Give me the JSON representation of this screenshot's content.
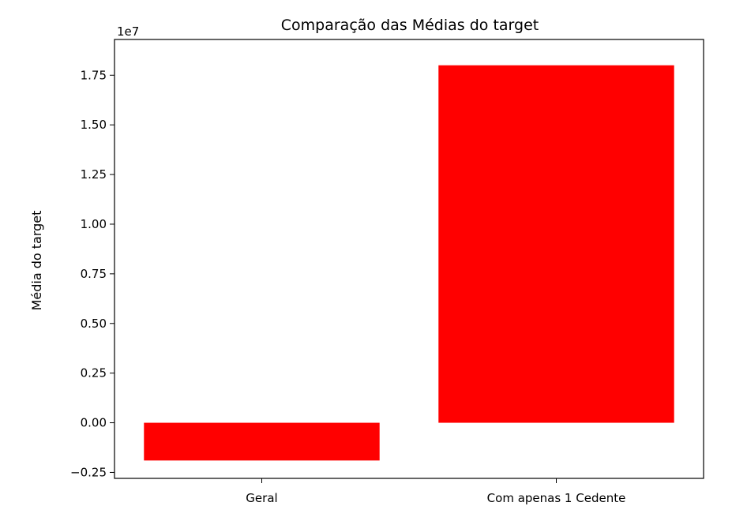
{
  "chart_data": {
    "type": "bar",
    "title": "Comparação das Médias do target",
    "xlabel": "",
    "ylabel": "Média do target",
    "categories": [
      "Geral",
      "Com apenas 1 Cedente"
    ],
    "values": [
      -1900000,
      18000000
    ],
    "ylim": [
      -2800000,
      19300000
    ],
    "yticks": [
      -0.25,
      0.0,
      0.25,
      0.5,
      0.75,
      1.0,
      1.25,
      1.5,
      1.75
    ],
    "yticks_labels": [
      "−0.25",
      "0.00",
      "0.25",
      "0.50",
      "0.75",
      "1.00",
      "1.25",
      "1.50",
      "1.75"
    ],
    "y_offset_label": "1e7",
    "y_scale_factor": 10000000,
    "bar_color": "#ff0000",
    "grid": false,
    "legend": "none"
  }
}
